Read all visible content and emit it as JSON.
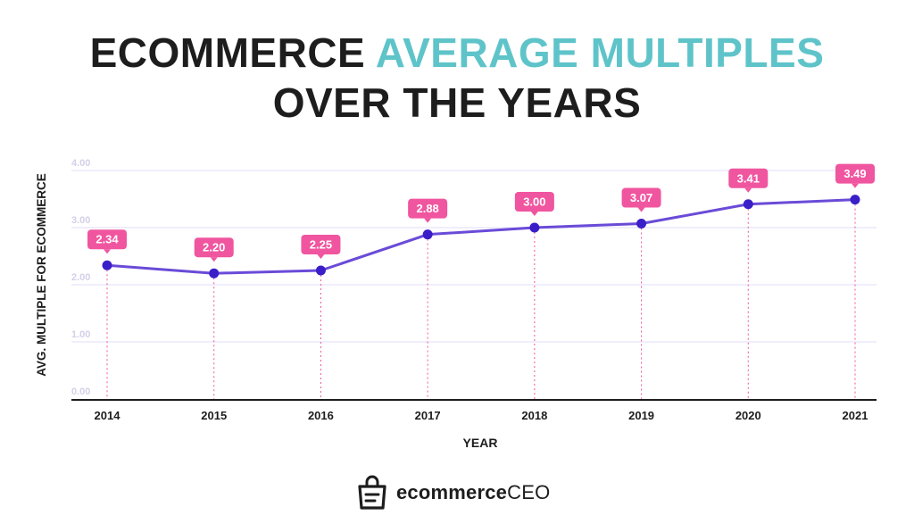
{
  "title": {
    "part1": "ECOMMERCE",
    "part2": "AVERAGE MULTIPLES",
    "line2": "OVER THE YEARS"
  },
  "colors": {
    "accent": "#5ec4c9",
    "line": "#6a4bd8",
    "marker": "#3a1fc9",
    "label_bg": "#f0559f",
    "guide": "#f0559f",
    "grid": "#ece8fa",
    "tick": "#d4d0e8",
    "axis": "#1d1d1d"
  },
  "chart_data": {
    "type": "line",
    "title": "ECOMMERCE AVERAGE MULTIPLES OVER THE YEARS",
    "xlabel": "YEAR",
    "ylabel": "AVG. MULTIPLE FOR ECOMMERCE",
    "categories": [
      "2014",
      "2015",
      "2016",
      "2017",
      "2018",
      "2019",
      "2020",
      "2021"
    ],
    "values": [
      2.34,
      2.2,
      2.25,
      2.88,
      3.0,
      3.07,
      3.41,
      3.49
    ],
    "data_labels": [
      "2.34",
      "2.20",
      "2.25",
      "2.88",
      "3.00",
      "3.07",
      "3.41",
      "3.49"
    ],
    "yticks": [
      "0.00",
      "1.00",
      "2.00",
      "3.00",
      "4.00"
    ],
    "ylim": [
      0,
      4
    ],
    "grid": true
  },
  "brand": {
    "name_part1": "ecommerce",
    "name_part2": "CEO",
    "icon": "shopping-bag-icon"
  }
}
